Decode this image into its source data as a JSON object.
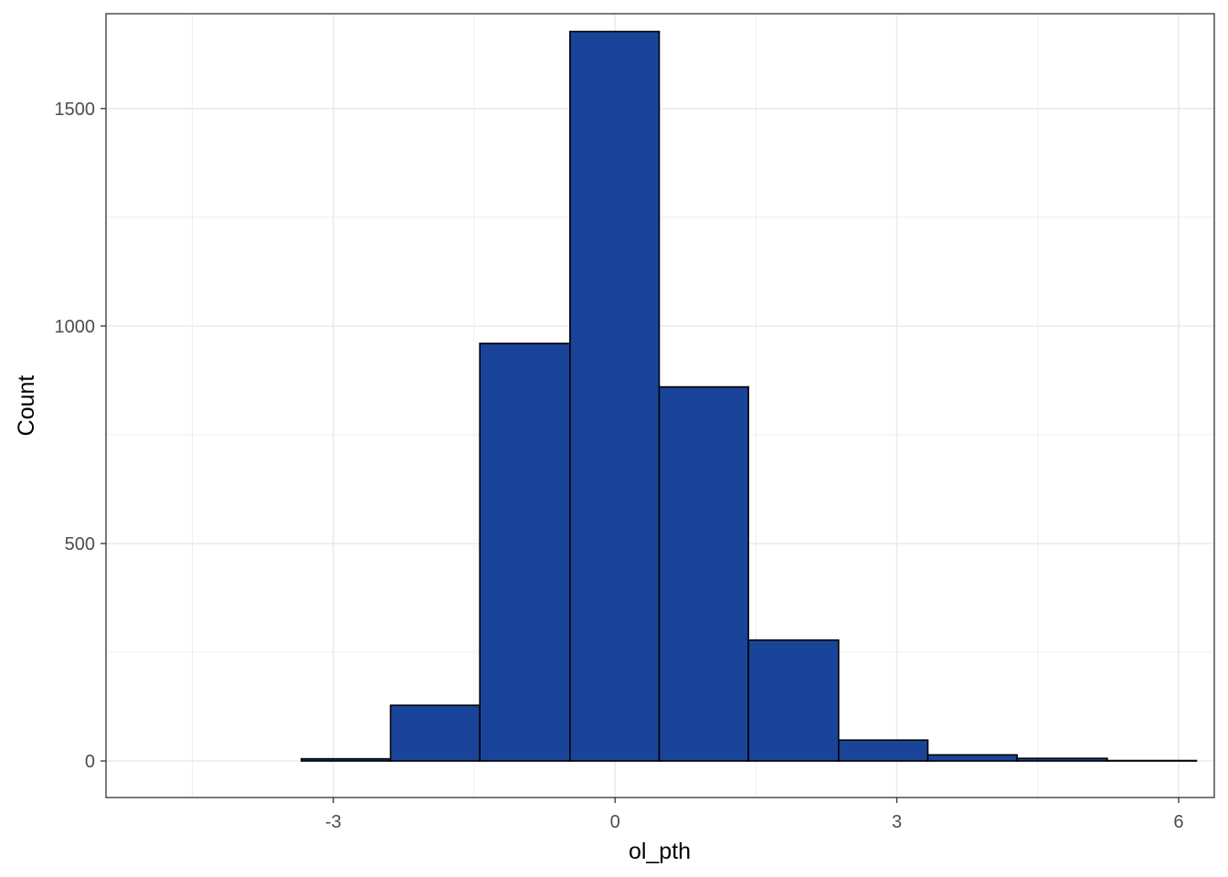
{
  "chart_data": {
    "type": "bar",
    "subtype": "histogram",
    "xlabel": "ol_pth",
    "ylabel": "Count",
    "xlim": [
      -5.42,
      6.38
    ],
    "ylim": [
      -84,
      1718
    ],
    "x_ticks": [
      -3,
      0,
      3,
      6
    ],
    "x_tick_labels": [
      "-3",
      "0",
      "3",
      "6"
    ],
    "y_ticks": [
      0,
      500,
      1000,
      1500
    ],
    "y_tick_labels": [
      "0",
      "500",
      "1000",
      "1500"
    ],
    "x_minor_gridlines": [
      -4.5,
      -1.5,
      1.5,
      4.5
    ],
    "y_minor_gridlines": [
      250,
      750,
      1250
    ],
    "bin_edges": [
      -5.25,
      -4.3,
      -3.34,
      -2.39,
      -1.44,
      -0.48,
      0.47,
      1.42,
      2.38,
      3.33,
      4.28,
      5.24,
      6.19
    ],
    "values": [
      0,
      0,
      5,
      128,
      960,
      1677,
      860,
      278,
      48,
      14,
      6,
      1
    ],
    "grid": true,
    "legend": "none",
    "colors": {
      "bar_fill": "#1A4499",
      "bar_stroke": "#000000",
      "grid": "#EBEBEB",
      "panel_border": "#333333",
      "tick_label": "#4D4D4D"
    }
  }
}
